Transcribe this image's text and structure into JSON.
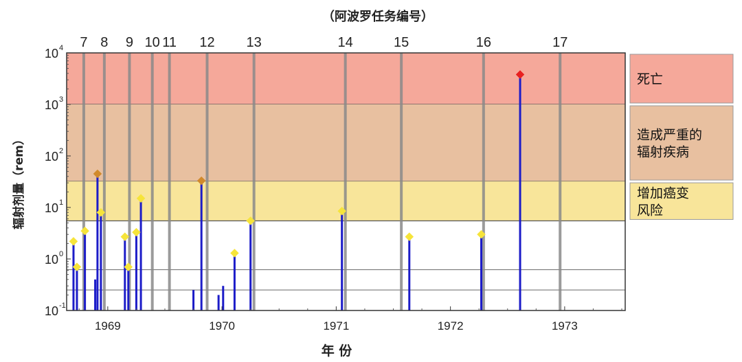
{
  "chart_data": {
    "type": "bar",
    "title": "（阿波罗任务编号）",
    "xlabel": "年 份",
    "ylabel": "辐射剂量（rem）",
    "y_scale": "log",
    "ylim": [
      0.1,
      10000
    ],
    "xlim": [
      1968.64,
      1973.53
    ],
    "y_ticks": [
      {
        "base": "10",
        "exp": "-1",
        "value": 0.1
      },
      {
        "base": "10",
        "exp": "0",
        "value": 1
      },
      {
        "base": "10",
        "exp": "1",
        "value": 10
      },
      {
        "base": "10",
        "exp": "2",
        "value": 100
      },
      {
        "base": "10",
        "exp": "3",
        "value": 1000
      },
      {
        "base": "10",
        "exp": "4",
        "value": 10000
      }
    ],
    "x_ticks": [
      {
        "label": "1969",
        "value": 1969
      },
      {
        "label": "1970",
        "value": 1970
      },
      {
        "label": "1971",
        "value": 1971
      },
      {
        "label": "1972",
        "value": 1972
      },
      {
        "label": "1973",
        "value": 1973
      }
    ],
    "zones": [
      {
        "label": [
          "死亡"
        ],
        "from": 1000,
        "to": 10000,
        "color": "#f5a89a"
      },
      {
        "label": [
          "造成严重的",
          "辐射疾病"
        ],
        "from": 32,
        "to": 1000,
        "color": "#e8c0a0"
      },
      {
        "label": [
          "增加癌变",
          "风险"
        ],
        "from": 5.5,
        "to": 32,
        "color": "#f8e59a"
      }
    ],
    "reference_lines": [
      0.62,
      0.25
    ],
    "missions": [
      {
        "label": "7",
        "x": 1968.79
      },
      {
        "label": "8",
        "x": 1968.97
      },
      {
        "label": "9",
        "x": 1969.19
      },
      {
        "label": "10",
        "x": 1969.39
      },
      {
        "label": "11",
        "x": 1969.54
      },
      {
        "label": "12",
        "x": 1969.87
      },
      {
        "label": "13",
        "x": 1970.28
      },
      {
        "label": "14",
        "x": 1971.08
      },
      {
        "label": "15",
        "x": 1971.57
      },
      {
        "label": "16",
        "x": 1972.29
      },
      {
        "label": "17",
        "x": 1972.96
      }
    ],
    "events": [
      {
        "x": 1968.7,
        "y": 2.2,
        "marker": "yellow"
      },
      {
        "x": 1968.73,
        "y": 0.7,
        "marker": "yellow"
      },
      {
        "x": 1968.8,
        "y": 3.5,
        "marker": "yellow"
      },
      {
        "x": 1968.89,
        "y": 0.4,
        "marker": "none"
      },
      {
        "x": 1968.91,
        "y": 45,
        "marker": "orange"
      },
      {
        "x": 1968.94,
        "y": 8.0,
        "marker": "yellow"
      },
      {
        "x": 1969.15,
        "y": 2.7,
        "marker": "yellow"
      },
      {
        "x": 1969.18,
        "y": 0.7,
        "marker": "yellow"
      },
      {
        "x": 1969.25,
        "y": 3.3,
        "marker": "yellow"
      },
      {
        "x": 1969.29,
        "y": 15,
        "marker": "yellow"
      },
      {
        "x": 1969.75,
        "y": 0.25,
        "marker": "none"
      },
      {
        "x": 1969.82,
        "y": 33,
        "marker": "orange"
      },
      {
        "x": 1969.97,
        "y": 0.2,
        "marker": "none"
      },
      {
        "x": 1970.01,
        "y": 0.3,
        "marker": "none"
      },
      {
        "x": 1970.11,
        "y": 1.3,
        "marker": "yellow"
      },
      {
        "x": 1970.25,
        "y": 5.5,
        "marker": "yellow"
      },
      {
        "x": 1971.05,
        "y": 8.5,
        "marker": "yellow"
      },
      {
        "x": 1971.64,
        "y": 2.7,
        "marker": "yellow"
      },
      {
        "x": 1972.27,
        "y": 3.0,
        "marker": "yellow"
      },
      {
        "x": 1972.61,
        "y": 3800,
        "marker": "red"
      }
    ],
    "colors": {
      "bar": "#1c1cc8",
      "mission_line": "#8a8a8a",
      "marker_yellow": "#f6e43a",
      "marker_orange": "#d18a2c",
      "marker_red": "#e82020",
      "frame": "#333333"
    },
    "grid": false
  }
}
